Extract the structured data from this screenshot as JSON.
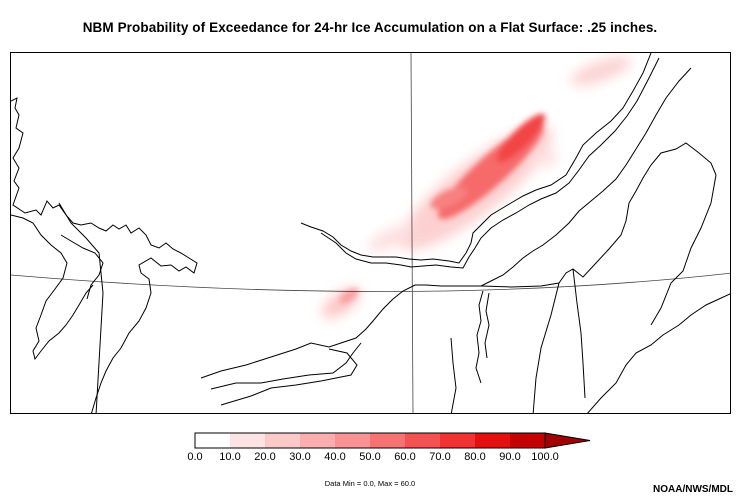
{
  "title": "NBM Probability of Exceedance for 24-hr Ice Accumulation on a Flat Surface: .25 inches.",
  "legend": {
    "ticks": [
      "0.0",
      "10.0",
      "20.0",
      "30.0",
      "40.0",
      "50.0",
      "60.0",
      "70.0",
      "80.0",
      "90.0",
      "100.0"
    ],
    "range": [
      0,
      100
    ],
    "colors": [
      "#ffffff",
      "#fde4e4",
      "#fcc9c9",
      "#faaeae",
      "#f89393",
      "#f67373",
      "#f45252",
      "#f23232",
      "#e60f0f",
      "#c40000",
      "#a00000"
    ],
    "data_minmax": "Data Min = 0.0, Max = 60.0"
  },
  "credit": "NOAA/NWS/MDL",
  "colors": {
    "ice_accent": "#e8102a",
    "boundary": "#000000",
    "grid": "#444444"
  }
}
